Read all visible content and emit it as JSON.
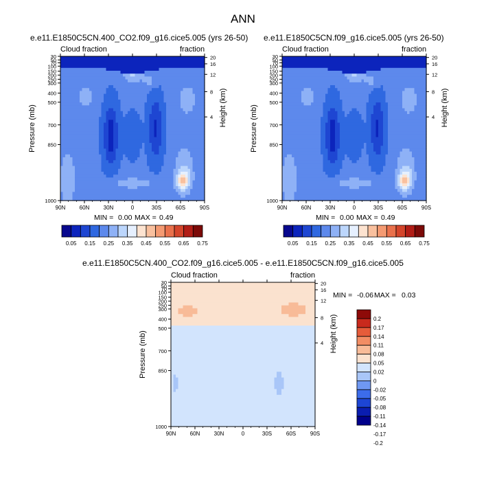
{
  "main_title": "ANN",
  "colors": {
    "full_scale": [
      "#08088e",
      "#0c24bc",
      "#1e46d2",
      "#2f68e0",
      "#5d89ec",
      "#8eb1f6",
      "#bcd6fc",
      "#e6f0ff",
      "#fde3d0",
      "#f9c09e",
      "#f49a72",
      "#e9714c",
      "#d4452b",
      "#b11d16",
      "#7c0a08"
    ],
    "diff_scale": [
      "#00008b",
      "#0a1db0",
      "#1d45d4",
      "#3c6cea",
      "#6f98f2",
      "#a9c6f8",
      "#d2e4fd",
      "#fbe2cf",
      "#f8bb98",
      "#f28d64",
      "#e65c3a",
      "#c92a1d",
      "#8e0a08"
    ]
  },
  "chart_data": [
    {
      "type": "heatmap",
      "title": "e.e11.E1850C5CN.400_CO2.f09_g16.cice5.005 (yrs 26-50)",
      "left_label": "Cloud fraction",
      "right_label": "fraction",
      "x_ticks": [
        "90N",
        "60N",
        "30N",
        "0",
        "30S",
        "60S",
        "90S"
      ],
      "y_ticks_left": [
        "30",
        "50",
        "70",
        "100",
        "150",
        "200",
        "250",
        "300",
        "400",
        "500",
        "700",
        "850",
        "1000"
      ],
      "y_ticks_right": [
        "20",
        "16",
        "12",
        "8",
        "4"
      ],
      "ylabel_left": "Pressure (mb)",
      "ylabel_right": "Height (km)",
      "stats": {
        "min_label": "MIN =",
        "min": "0.00",
        "max_label": "MAX =",
        "max": "0.49"
      },
      "colorbar": [
        "0.05",
        "0.15",
        "0.25",
        "0.35",
        "0.45",
        "0.55",
        "0.65",
        "0.75"
      ],
      "value_range": [
        0.0,
        0.49
      ]
    },
    {
      "type": "heatmap",
      "title": "e.e11.E1850C5CN.f09_g16.cice5.005 (yrs 26-50)",
      "left_label": "Cloud fraction",
      "right_label": "fraction",
      "x_ticks": [
        "90N",
        "60N",
        "30N",
        "0",
        "30S",
        "60S",
        "90S"
      ],
      "y_ticks_left": [
        "30",
        "50",
        "70",
        "100",
        "150",
        "200",
        "250",
        "300",
        "400",
        "500",
        "700",
        "850",
        "1000"
      ],
      "y_ticks_right": [
        "20",
        "16",
        "12",
        "8",
        "4"
      ],
      "ylabel_left": "Pressure (mb)",
      "ylabel_right": "Height (km)",
      "stats": {
        "min_label": "MIN =",
        "min": "0.00",
        "max_label": "MAX =",
        "max": "0.49"
      },
      "colorbar": [
        "0.05",
        "0.15",
        "0.25",
        "0.35",
        "0.45",
        "0.55",
        "0.65",
        "0.75"
      ],
      "value_range": [
        0.0,
        0.49
      ]
    },
    {
      "type": "heatmap",
      "title": "e.e11.E1850C5CN.400_CO2.f09_g16.cice5.005 - e.e11.E1850C5CN.f09_g16.cice5.005",
      "left_label": "Cloud fraction",
      "right_label": "fraction",
      "x_ticks": [
        "90N",
        "60N",
        "30N",
        "0",
        "30S",
        "60S",
        "90S"
      ],
      "y_ticks_left": [
        "30",
        "50",
        "70",
        "100",
        "150",
        "200",
        "250",
        "300",
        "400",
        "500",
        "700",
        "850",
        "1000"
      ],
      "y_ticks_right": [
        "20",
        "16",
        "12",
        "8",
        "4"
      ],
      "ylabel_left": "Pressure (mb)",
      "ylabel_right": "Height (km)",
      "stats": {
        "min_label": "MIN =",
        "min": "-0.06",
        "max_label": "MAX =",
        "max": "0.03"
      },
      "colorbar": [
        "0.2",
        "0.17",
        "0.14",
        "0.11",
        "0.08",
        "0.05",
        "0.02",
        "0",
        "-0.02",
        "-0.05",
        "-0.08",
        "-0.11",
        "-0.14",
        "-0.17",
        "-0.2"
      ],
      "value_range": [
        -0.06,
        0.03
      ]
    }
  ]
}
